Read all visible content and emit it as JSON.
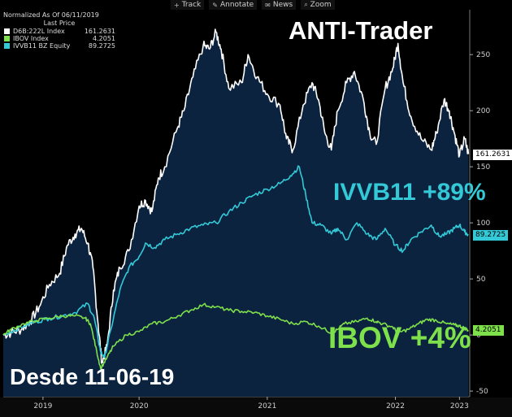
{
  "toolbar": {
    "items": [
      {
        "label": "Track",
        "icon": "crosshair-icon"
      },
      {
        "label": "Annotate",
        "icon": "pencil-icon"
      },
      {
        "label": "News",
        "icon": "news-icon"
      },
      {
        "label": "Zoom",
        "icon": "magnifier-icon"
      }
    ]
  },
  "legend": {
    "header": "Normalized As Of 06/11/2019",
    "subheader": "Last Price",
    "entries": [
      {
        "name": "D6B:222L Index",
        "value": "161.2631",
        "color": "#ffffff"
      },
      {
        "name": "IBOV Index",
        "value": "4.2051",
        "color": "#7ee04a"
      },
      {
        "name": "IVVB11 BZ Equity",
        "value": "89.2725",
        "color": "#33c9d6"
      }
    ]
  },
  "annotations": {
    "title": "ANTI-Trader",
    "ivvb": "IVVB11 +89%",
    "ibov": "IBOV +4%",
    "since": "Desde 11-06-19"
  },
  "chart_data": {
    "type": "line",
    "ylim": [
      -55,
      290
    ],
    "xlim": [
      2019.44,
      2023.08
    ],
    "grid": false,
    "legend_position": "top-left",
    "y_ticks": [
      -50,
      0,
      50,
      100,
      150,
      200,
      250
    ],
    "x_ticks": [
      {
        "value": 2019.75,
        "label": "2019"
      },
      {
        "value": 2020.5,
        "label": "2020"
      },
      {
        "value": 2021.5,
        "label": "2021"
      },
      {
        "value": 2022.5,
        "label": "2022"
      },
      {
        "value": 2023.0,
        "label": "2023"
      }
    ],
    "series": [
      {
        "name": "D6B:222L Index",
        "color": "#ffffff",
        "area_fill": "#0c2340",
        "last": 161.2631,
        "points": [
          [
            2019.44,
            0
          ],
          [
            2019.5,
            2
          ],
          [
            2019.58,
            5
          ],
          [
            2019.65,
            12
          ],
          [
            2019.72,
            25
          ],
          [
            2019.8,
            45
          ],
          [
            2019.88,
            55
          ],
          [
            2019.94,
            80
          ],
          [
            2020.0,
            90
          ],
          [
            2020.05,
            95
          ],
          [
            2020.1,
            82
          ],
          [
            2020.14,
            60
          ],
          [
            2020.18,
            10
          ],
          [
            2020.21,
            -25
          ],
          [
            2020.25,
            -10
          ],
          [
            2020.3,
            40
          ],
          [
            2020.35,
            60
          ],
          [
            2020.42,
            75
          ],
          [
            2020.5,
            115
          ],
          [
            2020.55,
            120
          ],
          [
            2020.6,
            110
          ],
          [
            2020.65,
            140
          ],
          [
            2020.7,
            150
          ],
          [
            2020.8,
            185
          ],
          [
            2020.85,
            200
          ],
          [
            2020.92,
            230
          ],
          [
            2021.0,
            258
          ],
          [
            2021.05,
            255
          ],
          [
            2021.1,
            270
          ],
          [
            2021.14,
            255
          ],
          [
            2021.2,
            220
          ],
          [
            2021.3,
            225
          ],
          [
            2021.35,
            250
          ],
          [
            2021.42,
            230
          ],
          [
            2021.5,
            215
          ],
          [
            2021.6,
            205
          ],
          [
            2021.65,
            175
          ],
          [
            2021.7,
            165
          ],
          [
            2021.78,
            205
          ],
          [
            2021.85,
            225
          ],
          [
            2021.9,
            210
          ],
          [
            2021.95,
            180
          ],
          [
            2022.0,
            165
          ],
          [
            2022.05,
            200
          ],
          [
            2022.12,
            225
          ],
          [
            2022.18,
            235
          ],
          [
            2022.25,
            210
          ],
          [
            2022.3,
            180
          ],
          [
            2022.35,
            170
          ],
          [
            2022.42,
            220
          ],
          [
            2022.48,
            238
          ],
          [
            2022.52,
            260
          ],
          [
            2022.56,
            225
          ],
          [
            2022.62,
            195
          ],
          [
            2022.7,
            175
          ],
          [
            2022.78,
            165
          ],
          [
            2022.82,
            180
          ],
          [
            2022.88,
            210
          ],
          [
            2022.92,
            200
          ],
          [
            2022.96,
            180
          ],
          [
            2023.0,
            160
          ],
          [
            2023.04,
            175
          ],
          [
            2023.07,
            161.3
          ]
        ]
      },
      {
        "name": "IVVB11 BZ Equity",
        "color": "#33c9d6",
        "last": 89.2725,
        "points": [
          [
            2019.44,
            0
          ],
          [
            2019.5,
            3
          ],
          [
            2019.6,
            8
          ],
          [
            2019.7,
            12
          ],
          [
            2019.8,
            15
          ],
          [
            2019.9,
            17
          ],
          [
            2020.0,
            20
          ],
          [
            2020.1,
            28
          ],
          [
            2020.15,
            15
          ],
          [
            2020.2,
            -15
          ],
          [
            2020.23,
            -20
          ],
          [
            2020.28,
            5
          ],
          [
            2020.35,
            40
          ],
          [
            2020.42,
            60
          ],
          [
            2020.5,
            70
          ],
          [
            2020.55,
            82
          ],
          [
            2020.62,
            78
          ],
          [
            2020.7,
            85
          ],
          [
            2020.8,
            90
          ],
          [
            2020.9,
            95
          ],
          [
            2021.0,
            98
          ],
          [
            2021.1,
            100
          ],
          [
            2021.2,
            110
          ],
          [
            2021.3,
            118
          ],
          [
            2021.4,
            125
          ],
          [
            2021.5,
            130
          ],
          [
            2021.6,
            135
          ],
          [
            2021.68,
            142
          ],
          [
            2021.75,
            150
          ],
          [
            2021.8,
            125
          ],
          [
            2021.85,
            100
          ],
          [
            2021.92,
            98
          ],
          [
            2022.0,
            90
          ],
          [
            2022.05,
            95
          ],
          [
            2022.12,
            85
          ],
          [
            2022.2,
            100
          ],
          [
            2022.28,
            90
          ],
          [
            2022.35,
            85
          ],
          [
            2022.42,
            95
          ],
          [
            2022.5,
            80
          ],
          [
            2022.56,
            75
          ],
          [
            2022.62,
            85
          ],
          [
            2022.7,
            92
          ],
          [
            2022.78,
            98
          ],
          [
            2022.84,
            88
          ],
          [
            2022.9,
            90
          ],
          [
            2022.96,
            95
          ],
          [
            2023.0,
            98
          ],
          [
            2023.04,
            92
          ],
          [
            2023.07,
            89.3
          ]
        ]
      },
      {
        "name": "IBOV Index",
        "color": "#7ee04a",
        "last": 4.2051,
        "points": [
          [
            2019.44,
            0
          ],
          [
            2019.5,
            5
          ],
          [
            2019.6,
            10
          ],
          [
            2019.7,
            13
          ],
          [
            2019.8,
            15
          ],
          [
            2019.9,
            17
          ],
          [
            2020.0,
            17
          ],
          [
            2020.08,
            15
          ],
          [
            2020.12,
            10
          ],
          [
            2020.17,
            -15
          ],
          [
            2020.2,
            -30
          ],
          [
            2020.25,
            -20
          ],
          [
            2020.3,
            -10
          ],
          [
            2020.4,
            0
          ],
          [
            2020.5,
            3
          ],
          [
            2020.6,
            10
          ],
          [
            2020.7,
            12
          ],
          [
            2020.8,
            17
          ],
          [
            2020.9,
            22
          ],
          [
            2021.0,
            27
          ],
          [
            2021.1,
            25
          ],
          [
            2021.2,
            22
          ],
          [
            2021.3,
            21
          ],
          [
            2021.4,
            20
          ],
          [
            2021.5,
            17
          ],
          [
            2021.6,
            14
          ],
          [
            2021.7,
            10
          ],
          [
            2021.8,
            12
          ],
          [
            2021.9,
            8
          ],
          [
            2022.0,
            2
          ],
          [
            2022.05,
            5
          ],
          [
            2022.1,
            10
          ],
          [
            2022.2,
            12
          ],
          [
            2022.28,
            15
          ],
          [
            2022.35,
            12
          ],
          [
            2022.4,
            10
          ],
          [
            2022.48,
            7
          ],
          [
            2022.52,
            2
          ],
          [
            2022.6,
            5
          ],
          [
            2022.68,
            10
          ],
          [
            2022.75,
            14
          ],
          [
            2022.82,
            13
          ],
          [
            2022.9,
            10
          ],
          [
            2022.96,
            9
          ],
          [
            2023.0,
            8
          ],
          [
            2023.04,
            6
          ],
          [
            2023.07,
            4.2
          ]
        ]
      }
    ]
  }
}
